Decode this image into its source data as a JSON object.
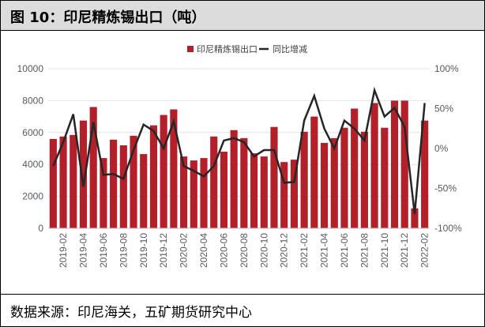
{
  "title": "图 10：印尼精炼锡出口（吨）",
  "source": "数据来源：印尼海关，五矿期货研究中心",
  "chart_data": {
    "type": "bar",
    "legend": [
      "印尼精炼锡出口",
      "同比增减"
    ],
    "legend_placement": "top",
    "categories": [
      "2019-01",
      "2019-02",
      "2019-03",
      "2019-04",
      "2019-05",
      "2019-06",
      "2019-07",
      "2019-08",
      "2019-09",
      "2019-10",
      "2019-11",
      "2019-12",
      "2020-01",
      "2020-02",
      "2020-03",
      "2020-04",
      "2020-05",
      "2020-06",
      "2020-07",
      "2020-08",
      "2020-09",
      "2020-10",
      "2020-11",
      "2020-12",
      "2021-01",
      "2021-02",
      "2021-03",
      "2021-04",
      "2021-05",
      "2021-06",
      "2021-07",
      "2021-08",
      "2021-09",
      "2021-10",
      "2021-11",
      "2021-12",
      "2022-01",
      "2022-02"
    ],
    "x_tick_labels": [
      "2019-02",
      "2019-04",
      "2019-06",
      "2019-08",
      "2019-10",
      "2019-12",
      "2020-02",
      "2020-04",
      "2020-06",
      "2020-08",
      "2020-10",
      "2020-12",
      "2021-02",
      "2021-04",
      "2021-06",
      "2021-08",
      "2021-10",
      "2021-12",
      "2022-02"
    ],
    "series": [
      {
        "name": "印尼精炼锡出口",
        "type": "bar",
        "axis": "left",
        "color": "#b3202a",
        "values": [
          5600,
          5750,
          5850,
          6750,
          7600,
          4400,
          5550,
          5200,
          5800,
          4650,
          6450,
          7100,
          7450,
          4500,
          4250,
          4400,
          5750,
          4800,
          6150,
          5650,
          4700,
          4500,
          6350,
          4150,
          4300,
          6050,
          7000,
          5350,
          5650,
          6300,
          7500,
          6050,
          7850,
          6300,
          8000,
          8000,
          1250,
          6750
        ]
      },
      {
        "name": "同比增减",
        "type": "line",
        "axis": "right",
        "unit": "%",
        "color": "#262626",
        "values": [
          -22,
          8,
          43,
          -48,
          33,
          -33,
          -32,
          -38,
          -2,
          30,
          22,
          0,
          34,
          -22,
          -28,
          -35,
          -22,
          10,
          13,
          8,
          -10,
          -2,
          -2,
          -43,
          -42,
          35,
          66,
          25,
          0,
          35,
          25,
          10,
          73,
          40,
          51,
          27,
          -82,
          57
        ]
      }
    ],
    "y_left": {
      "min": 0,
      "max": 10000,
      "ticks": [
        0,
        2000,
        4000,
        6000,
        8000,
        10000
      ]
    },
    "y_right": {
      "min": -100,
      "max": 100,
      "ticks": [
        -100,
        -50,
        0,
        50,
        100
      ],
      "tick_labels": [
        "-100%",
        "-50%",
        "0%",
        "50%",
        "100%"
      ]
    }
  }
}
